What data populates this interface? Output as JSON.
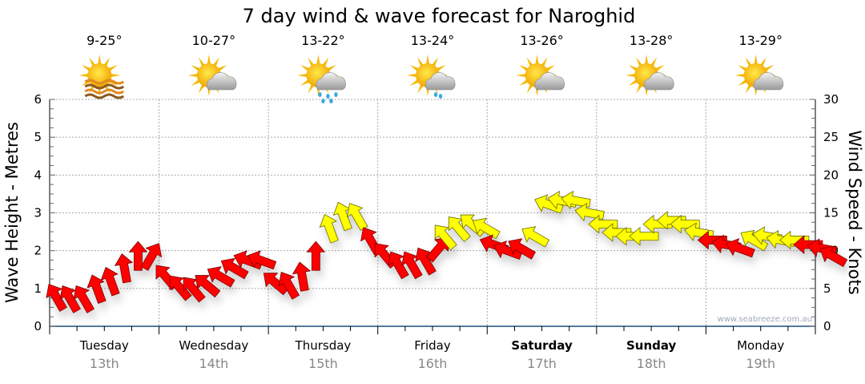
{
  "chart_data": {
    "type": "scatter",
    "title": "7 day wind & wave forecast for Naroghid",
    "ylabel": "Wave Height - Metres",
    "y2label": "Wind Speed - Knots",
    "ylim": [
      0,
      6
    ],
    "y2lim": [
      0,
      30
    ],
    "yticks": [
      "0",
      "1",
      "2",
      "3",
      "4",
      "5",
      "6"
    ],
    "y2ticks": [
      "0",
      "5",
      "10",
      "15",
      "20",
      "25",
      "30"
    ],
    "grid": true,
    "watermark": "www.seabreeze.com.au",
    "colors": {
      "red": "#ff0000",
      "yellow": "#ffff00"
    },
    "days": [
      {
        "day": "Tuesday",
        "date": "13th",
        "temp": "9-25°",
        "icon": "sun-haze-icon",
        "bold": false
      },
      {
        "day": "Wednesday",
        "date": "14th",
        "temp": "10-27°",
        "icon": "partly-cloudy-icon",
        "bold": false
      },
      {
        "day": "Thursday",
        "date": "15th",
        "temp": "13-22°",
        "icon": "sun-showers-icon",
        "bold": false
      },
      {
        "day": "Friday",
        "date": "16th",
        "temp": "13-24°",
        "icon": "sun-light-showers-icon",
        "bold": false
      },
      {
        "day": "Saturday",
        "date": "17th",
        "temp": "13-26°",
        "icon": "partly-cloudy-icon",
        "bold": true
      },
      {
        "day": "Sunday",
        "date": "18th",
        "temp": "13-28°",
        "icon": "partly-cloudy-icon",
        "bold": true
      },
      {
        "day": "Monday",
        "date": "19th",
        "temp": "13-29°",
        "icon": "partly-cloudy-icon",
        "bold": false
      }
    ],
    "wind": [
      {
        "t": 0.0,
        "kn": 3.9,
        "dir": -30,
        "c": "red"
      },
      {
        "t": 0.125,
        "kn": 3.7,
        "dir": -30,
        "c": "red"
      },
      {
        "t": 0.25,
        "kn": 3.7,
        "dir": -30,
        "c": "red"
      },
      {
        "t": 0.375,
        "kn": 5.0,
        "dir": -20,
        "c": "red"
      },
      {
        "t": 0.5,
        "kn": 6.0,
        "dir": -20,
        "c": "red"
      },
      {
        "t": 0.625,
        "kn": 7.7,
        "dir": -10,
        "c": "red"
      },
      {
        "t": 0.75,
        "kn": 9.3,
        "dir": 0,
        "c": "red"
      },
      {
        "t": 0.875,
        "kn": 9.3,
        "dir": 30,
        "c": "red"
      },
      {
        "t": 1.0,
        "kn": 6.6,
        "dir": -40,
        "c": "red"
      },
      {
        "t": 1.125,
        "kn": 5.2,
        "dir": -40,
        "c": "red"
      },
      {
        "t": 1.25,
        "kn": 5.0,
        "dir": -40,
        "c": "red"
      },
      {
        "t": 1.375,
        "kn": 5.5,
        "dir": -50,
        "c": "red"
      },
      {
        "t": 1.5,
        "kn": 6.6,
        "dir": -60,
        "c": "red"
      },
      {
        "t": 1.625,
        "kn": 7.7,
        "dir": -60,
        "c": "red"
      },
      {
        "t": 1.75,
        "kn": 8.7,
        "dir": -70,
        "c": "red"
      },
      {
        "t": 1.875,
        "kn": 8.7,
        "dir": -70,
        "c": "red"
      },
      {
        "t": 2.0,
        "kn": 5.8,
        "dir": -50,
        "c": "red"
      },
      {
        "t": 2.125,
        "kn": 5.5,
        "dir": -30,
        "c": "red"
      },
      {
        "t": 2.25,
        "kn": 6.6,
        "dir": -10,
        "c": "red"
      },
      {
        "t": 2.375,
        "kn": 9.3,
        "dir": 0,
        "c": "red"
      },
      {
        "t": 2.5,
        "kn": 13.0,
        "dir": -20,
        "c": "yellow"
      },
      {
        "t": 2.625,
        "kn": 14.6,
        "dir": -20,
        "c": "yellow"
      },
      {
        "t": 2.75,
        "kn": 14.6,
        "dir": -30,
        "c": "yellow"
      },
      {
        "t": 2.875,
        "kn": 11.4,
        "dir": -30,
        "c": "red"
      },
      {
        "t": 3.0,
        "kn": 9.5,
        "dir": -40,
        "c": "red"
      },
      {
        "t": 3.125,
        "kn": 8.2,
        "dir": -30,
        "c": "red"
      },
      {
        "t": 3.25,
        "kn": 8.2,
        "dir": -30,
        "c": "red"
      },
      {
        "t": 3.375,
        "kn": 8.7,
        "dir": -30,
        "c": "red"
      },
      {
        "t": 3.5,
        "kn": 10.3,
        "dir": 40,
        "c": "red"
      },
      {
        "t": 3.55,
        "kn": 11.9,
        "dir": -40,
        "c": "yellow"
      },
      {
        "t": 3.675,
        "kn": 13.0,
        "dir": -40,
        "c": "yellow"
      },
      {
        "t": 3.8,
        "kn": 13.5,
        "dir": -50,
        "c": "yellow"
      },
      {
        "t": 3.925,
        "kn": 13.0,
        "dir": -60,
        "c": "yellow"
      },
      {
        "t": 4.0,
        "kn": 10.8,
        "dir": -70,
        "c": "red"
      },
      {
        "t": 4.125,
        "kn": 10.0,
        "dir": -70,
        "c": "red"
      },
      {
        "t": 4.25,
        "kn": 10.3,
        "dir": -60,
        "c": "red"
      },
      {
        "t": 4.375,
        "kn": 11.9,
        "dir": -60,
        "c": "yellow"
      },
      {
        "t": 4.5,
        "kn": 16.1,
        "dir": -70,
        "c": "yellow"
      },
      {
        "t": 4.625,
        "kn": 16.6,
        "dir": -80,
        "c": "yellow"
      },
      {
        "t": 4.75,
        "kn": 16.6,
        "dir": -80,
        "c": "yellow"
      },
      {
        "t": 4.875,
        "kn": 15.0,
        "dir": -80,
        "c": "yellow"
      },
      {
        "t": 5.0,
        "kn": 13.5,
        "dir": -90,
        "c": "yellow"
      },
      {
        "t": 5.125,
        "kn": 12.4,
        "dir": -90,
        "c": "yellow"
      },
      {
        "t": 5.25,
        "kn": 11.9,
        "dir": -90,
        "c": "yellow"
      },
      {
        "t": 5.375,
        "kn": 11.9,
        "dir": -90,
        "c": "yellow"
      },
      {
        "t": 5.5,
        "kn": 13.5,
        "dir": -90,
        "c": "yellow"
      },
      {
        "t": 5.625,
        "kn": 14.0,
        "dir": -90,
        "c": "yellow"
      },
      {
        "t": 5.75,
        "kn": 13.5,
        "dir": -90,
        "c": "yellow"
      },
      {
        "t": 5.875,
        "kn": 12.4,
        "dir": -80,
        "c": "yellow"
      },
      {
        "t": 6.0,
        "kn": 11.4,
        "dir": -90,
        "c": "red"
      },
      {
        "t": 6.125,
        "kn": 10.8,
        "dir": -80,
        "c": "red"
      },
      {
        "t": 6.25,
        "kn": 10.3,
        "dir": -70,
        "c": "red"
      },
      {
        "t": 6.375,
        "kn": 11.4,
        "dir": -60,
        "c": "yellow"
      },
      {
        "t": 6.5,
        "kn": 11.9,
        "dir": -80,
        "c": "yellow"
      },
      {
        "t": 6.625,
        "kn": 11.4,
        "dir": -80,
        "c": "yellow"
      },
      {
        "t": 6.75,
        "kn": 11.4,
        "dir": -90,
        "c": "yellow"
      },
      {
        "t": 6.875,
        "kn": 10.8,
        "dir": -90,
        "c": "red"
      },
      {
        "t": 7.0,
        "kn": 10.3,
        "dir": -80,
        "c": "red"
      },
      {
        "t": 7.1,
        "kn": 9.3,
        "dir": -60,
        "c": "red"
      }
    ]
  }
}
